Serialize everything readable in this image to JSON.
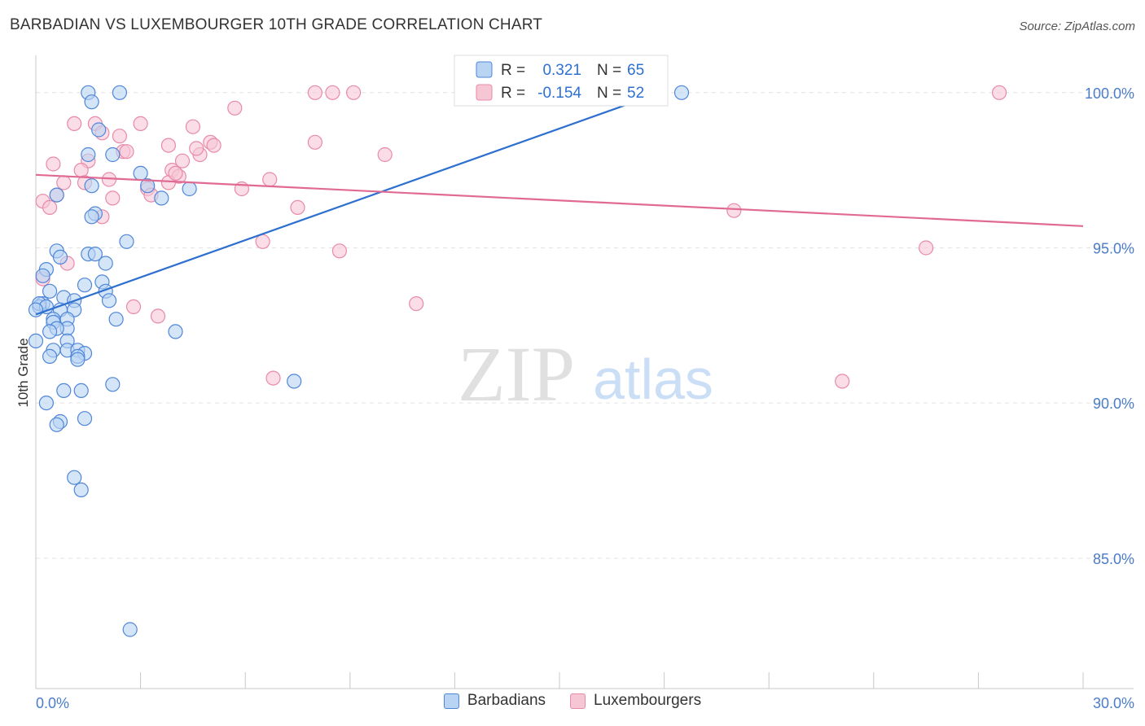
{
  "header": {
    "title": "BARBADIAN VS LUXEMBOURGER 10TH GRADE CORRELATION CHART",
    "source": "Source: ZipAtlas.com"
  },
  "watermark": {
    "zip": "ZIP",
    "atlas": "atlas"
  },
  "colors": {
    "blue": "#4f86d9",
    "blue_fill": "#b9d3f3",
    "blue_line": "#2e70cf",
    "pink": "#e88aa8",
    "pink_fill": "#f7c6d5",
    "pink_line": "#e06a94",
    "axis_text": "#4a7cc9"
  },
  "stats": [
    {
      "r_label": "R =",
      "r_value": "0.321",
      "n_label": "N =",
      "n_value": "65"
    },
    {
      "r_label": "R =",
      "r_value": "-0.154",
      "n_label": "N =",
      "n_value": "52"
    }
  ],
  "chart_data": {
    "type": "scatter",
    "title": "BARBADIAN VS LUXEMBOURGER 10TH GRADE CORRELATION CHART",
    "xlabel": "",
    "ylabel": "10th Grade",
    "xlim": [
      0,
      30
    ],
    "ylim": [
      80.8,
      101.2
    ],
    "x_tick_labels": [
      "0.0%",
      "30.0%"
    ],
    "y_ticks": [
      100,
      95,
      90,
      85
    ],
    "y_tick_labels": [
      "100.0%",
      "95.0%",
      "90.0%",
      "85.0%"
    ],
    "grid": true,
    "legend_position": "bottom-center",
    "series": [
      {
        "name": "Barbadians",
        "r": 0.321,
        "n": 65,
        "trend": {
          "x": [
            0.0,
            17.9
          ],
          "y": [
            92.85,
            100.0
          ]
        },
        "points": [
          [
            1.5,
            100.0
          ],
          [
            2.4,
            100.0
          ],
          [
            18.5,
            100.0
          ],
          [
            1.6,
            99.7
          ],
          [
            1.8,
            98.8
          ],
          [
            2.2,
            98.0
          ],
          [
            1.5,
            98.0
          ],
          [
            3.0,
            97.4
          ],
          [
            1.6,
            97.0
          ],
          [
            3.2,
            97.0
          ],
          [
            4.4,
            96.9
          ],
          [
            0.6,
            96.7
          ],
          [
            3.6,
            96.6
          ],
          [
            1.7,
            96.1
          ],
          [
            1.6,
            96.0
          ],
          [
            2.6,
            95.2
          ],
          [
            0.6,
            94.9
          ],
          [
            1.5,
            94.8
          ],
          [
            1.7,
            94.8
          ],
          [
            0.7,
            94.7
          ],
          [
            2.0,
            94.5
          ],
          [
            0.3,
            94.3
          ],
          [
            0.2,
            94.1
          ],
          [
            1.9,
            93.9
          ],
          [
            1.4,
            93.8
          ],
          [
            2.0,
            93.6
          ],
          [
            0.4,
            93.6
          ],
          [
            0.8,
            93.4
          ],
          [
            2.1,
            93.3
          ],
          [
            1.1,
            93.3
          ],
          [
            0.2,
            93.2
          ],
          [
            0.1,
            93.1
          ],
          [
            0.7,
            93.0
          ],
          [
            1.1,
            93.0
          ],
          [
            0.9,
            92.7
          ],
          [
            0.5,
            92.7
          ],
          [
            0.5,
            92.6
          ],
          [
            2.3,
            92.7
          ],
          [
            0.9,
            92.4
          ],
          [
            0.6,
            92.4
          ],
          [
            4.0,
            92.3
          ],
          [
            0.4,
            92.3
          ],
          [
            0.9,
            92.0
          ],
          [
            0.0,
            92.0
          ],
          [
            0.5,
            91.7
          ],
          [
            0.9,
            91.7
          ],
          [
            1.2,
            91.7
          ],
          [
            1.4,
            91.6
          ],
          [
            0.4,
            91.5
          ],
          [
            1.2,
            91.5
          ],
          [
            1.2,
            91.4
          ],
          [
            7.4,
            90.7
          ],
          [
            2.2,
            90.6
          ],
          [
            0.8,
            90.4
          ],
          [
            1.3,
            90.4
          ],
          [
            0.3,
            90.0
          ],
          [
            1.4,
            89.5
          ],
          [
            0.7,
            89.4
          ],
          [
            0.6,
            89.3
          ],
          [
            1.1,
            87.6
          ],
          [
            1.3,
            87.2
          ],
          [
            2.7,
            82.7
          ],
          [
            0.1,
            93.2
          ],
          [
            0.3,
            93.1
          ],
          [
            0.0,
            93.0
          ]
        ]
      },
      {
        "name": "Luxembourgers",
        "r": -0.154,
        "n": 52,
        "trend": {
          "x": [
            0.0,
            30.0
          ],
          "y": [
            97.35,
            95.7
          ]
        },
        "points": [
          [
            8.0,
            100.0
          ],
          [
            8.5,
            100.0
          ],
          [
            9.1,
            100.0
          ],
          [
            27.6,
            100.0
          ],
          [
            5.7,
            99.5
          ],
          [
            1.1,
            99.0
          ],
          [
            3.0,
            99.0
          ],
          [
            1.7,
            99.0
          ],
          [
            4.5,
            98.9
          ],
          [
            1.9,
            98.7
          ],
          [
            2.4,
            98.6
          ],
          [
            5.0,
            98.4
          ],
          [
            8.0,
            98.4
          ],
          [
            3.8,
            98.3
          ],
          [
            2.5,
            98.1
          ],
          [
            2.6,
            98.1
          ],
          [
            4.7,
            98.0
          ],
          [
            10.0,
            98.0
          ],
          [
            4.2,
            97.8
          ],
          [
            1.5,
            97.8
          ],
          [
            0.5,
            97.7
          ],
          [
            1.3,
            97.5
          ],
          [
            3.9,
            97.5
          ],
          [
            4.1,
            97.3
          ],
          [
            6.7,
            97.2
          ],
          [
            2.1,
            97.2
          ],
          [
            3.8,
            97.1
          ],
          [
            0.8,
            97.1
          ],
          [
            1.4,
            97.1
          ],
          [
            3.2,
            96.9
          ],
          [
            5.9,
            96.9
          ],
          [
            3.3,
            96.7
          ],
          [
            0.6,
            96.7
          ],
          [
            2.2,
            96.6
          ],
          [
            0.2,
            96.5
          ],
          [
            0.4,
            96.3
          ],
          [
            7.5,
            96.3
          ],
          [
            20.0,
            96.2
          ],
          [
            1.9,
            96.0
          ],
          [
            6.5,
            95.2
          ],
          [
            8.7,
            94.9
          ],
          [
            25.5,
            95.0
          ],
          [
            0.9,
            94.5
          ],
          [
            0.2,
            94.0
          ],
          [
            10.9,
            93.2
          ],
          [
            2.8,
            93.1
          ],
          [
            3.5,
            92.8
          ],
          [
            6.8,
            90.8
          ],
          [
            23.1,
            90.7
          ],
          [
            4.6,
            98.2
          ],
          [
            5.1,
            98.3
          ],
          [
            4.0,
            97.4
          ]
        ]
      }
    ]
  }
}
